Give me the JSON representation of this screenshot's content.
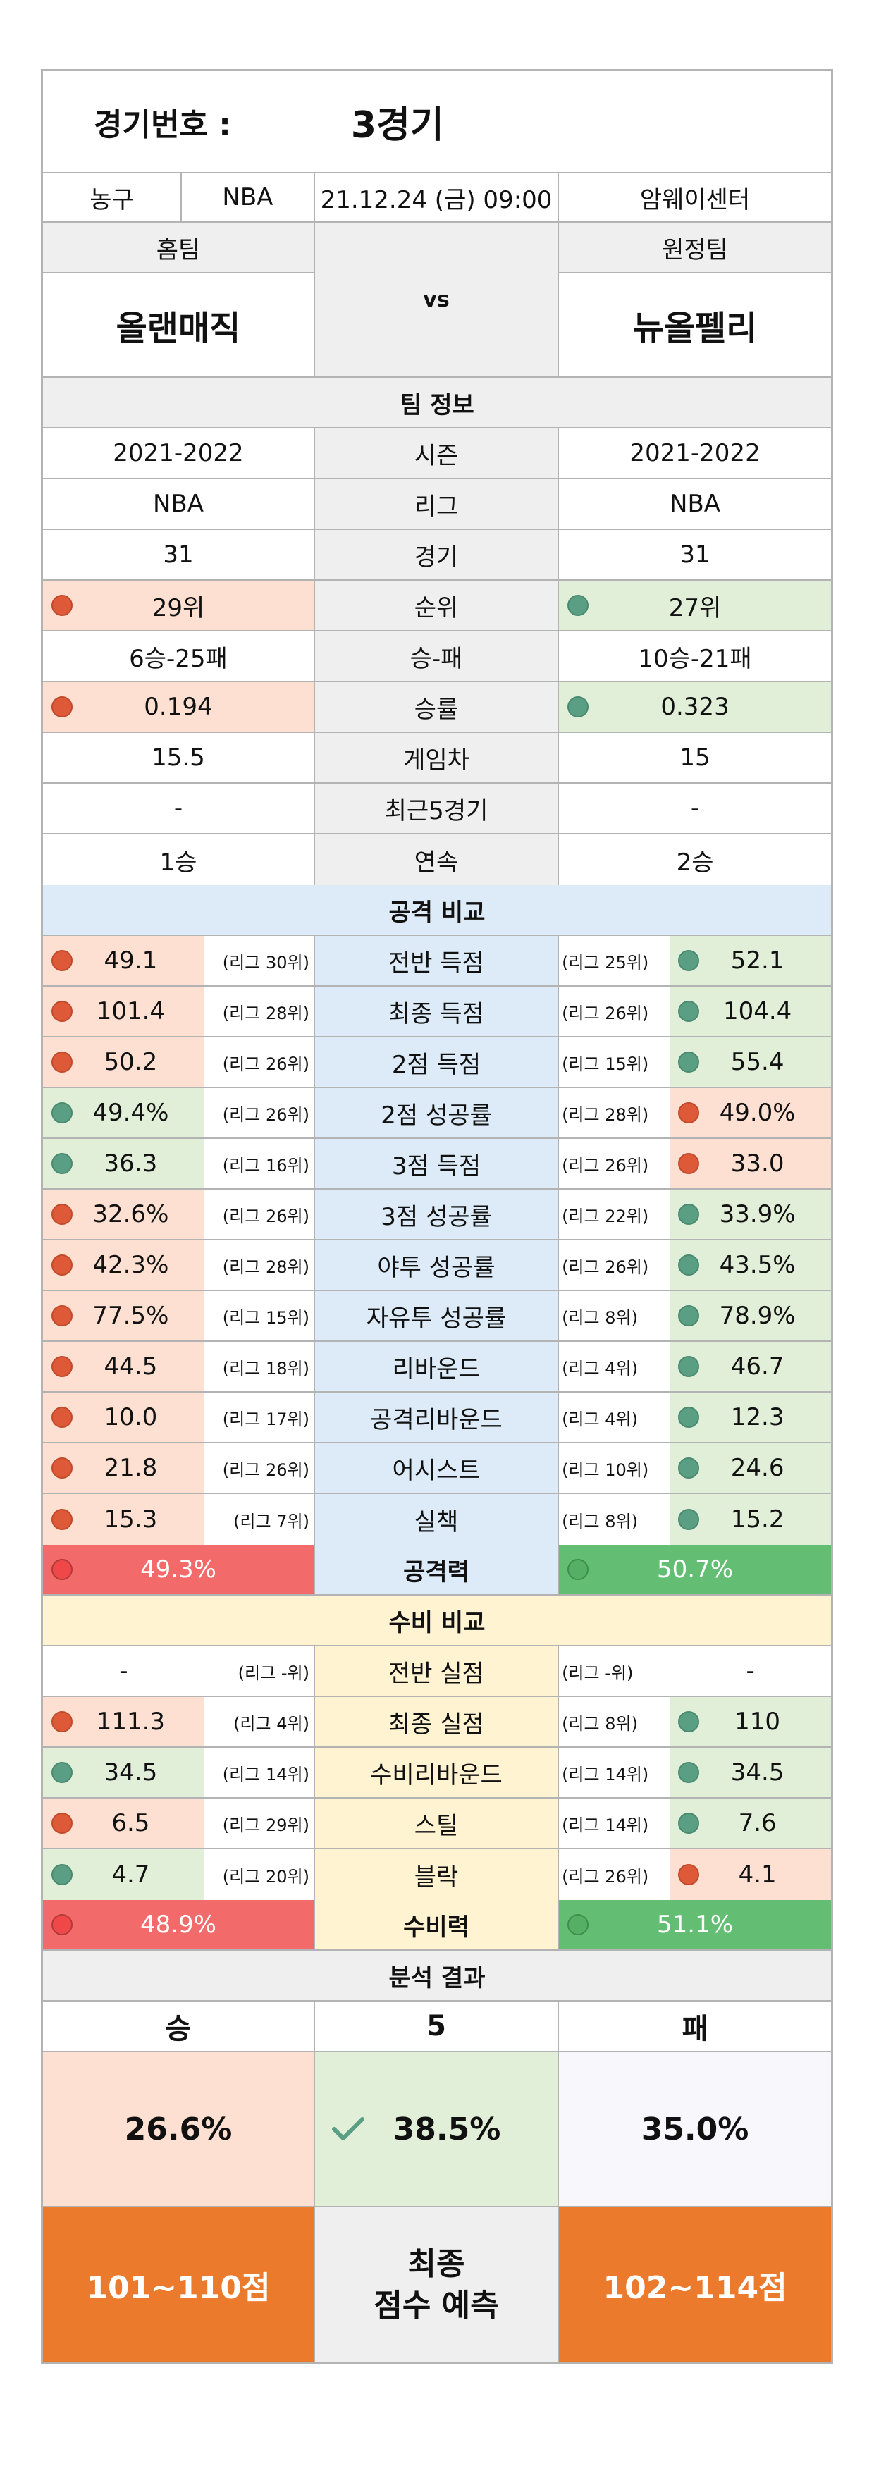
{
  "header": {
    "game_label": "경기번호 :",
    "game_value": "3경기"
  },
  "info": {
    "sport": "농구",
    "league": "NBA",
    "datetime": "21.12.24 (금) 09:00",
    "venue": "암웨이센터"
  },
  "teams": {
    "home_label": "홈팀",
    "away_label": "원정팀",
    "home_name": "올랜매직",
    "away_name": "뉴올펠리",
    "vs": "vs"
  },
  "team_info": {
    "title": "팀 정보",
    "rows": [
      {
        "label": "시즌",
        "home": "2021-2022",
        "away": "2021-2022",
        "marker": ""
      },
      {
        "label": "리그",
        "home": "NBA",
        "away": "NBA",
        "marker": ""
      },
      {
        "label": "경기",
        "home": "31",
        "away": "31",
        "marker": ""
      },
      {
        "label": "순위",
        "home": "29위",
        "away": "27위",
        "marker": "away"
      },
      {
        "label": "승-패",
        "home": "6승-25패",
        "away": "10승-21패",
        "marker": ""
      },
      {
        "label": "승률",
        "home": "0.194",
        "away": "0.323",
        "marker": "away"
      },
      {
        "label": "게임차",
        "home": "15.5",
        "away": "15",
        "marker": ""
      },
      {
        "label": "최근5경기",
        "home": "-",
        "away": "-",
        "marker": ""
      },
      {
        "label": "연속",
        "home": "1승",
        "away": "2승",
        "marker": ""
      }
    ]
  },
  "offense": {
    "title": "공격 비교",
    "rows": [
      {
        "label": "전반 득점",
        "home": "49.1",
        "home_rank": "(리그 30위)",
        "away_rank": "(리그 25위)",
        "away": "52.1",
        "better": "away"
      },
      {
        "label": "최종 득점",
        "home": "101.4",
        "home_rank": "(리그 28위)",
        "away_rank": "(리그 26위)",
        "away": "104.4",
        "better": "away"
      },
      {
        "label": "2점 득점",
        "home": "50.2",
        "home_rank": "(리그 26위)",
        "away_rank": "(리그 15위)",
        "away": "55.4",
        "better": "away"
      },
      {
        "label": "2점 성공률",
        "home": "49.4%",
        "home_rank": "(리그 26위)",
        "away_rank": "(리그 28위)",
        "away": "49.0%",
        "better": "home"
      },
      {
        "label": "3점 득점",
        "home": "36.3",
        "home_rank": "(리그 16위)",
        "away_rank": "(리그 26위)",
        "away": "33.0",
        "better": "home"
      },
      {
        "label": "3점 성공률",
        "home": "32.6%",
        "home_rank": "(리그 26위)",
        "away_rank": "(리그 22위)",
        "away": "33.9%",
        "better": "away"
      },
      {
        "label": "야투 성공률",
        "home": "42.3%",
        "home_rank": "(리그 28위)",
        "away_rank": "(리그 26위)",
        "away": "43.5%",
        "better": "away"
      },
      {
        "label": "자유투 성공률",
        "home": "77.5%",
        "home_rank": "(리그 15위)",
        "away_rank": "(리그 8위)",
        "away": "78.9%",
        "better": "away"
      },
      {
        "label": "리바운드",
        "home": "44.5",
        "home_rank": "(리그 18위)",
        "away_rank": "(리그 4위)",
        "away": "46.7",
        "better": "away"
      },
      {
        "label": "공격리바운드",
        "home": "10.0",
        "home_rank": "(리그 17위)",
        "away_rank": "(리그 4위)",
        "away": "12.3",
        "better": "away"
      },
      {
        "label": "어시스트",
        "home": "21.8",
        "home_rank": "(리그 26위)",
        "away_rank": "(리그 10위)",
        "away": "24.6",
        "better": "away"
      },
      {
        "label": "실책",
        "home": "15.3",
        "home_rank": "(리그 7위)",
        "away_rank": "(리그 8위)",
        "away": "15.2",
        "better": "away"
      }
    ],
    "summary": {
      "label": "공격력",
      "home": "49.3%",
      "away": "50.7%"
    }
  },
  "defense": {
    "title": "수비 비교",
    "rows": [
      {
        "label": "전반 실점",
        "home": "-",
        "home_rank": "(리그 -위)",
        "away_rank": "(리그 -위)",
        "away": "-",
        "better": ""
      },
      {
        "label": "최종 실점",
        "home": "111.3",
        "home_rank": "(리그 4위)",
        "away_rank": "(리그 8위)",
        "away": "110",
        "better": "away"
      },
      {
        "label": "수비리바운드",
        "home": "34.5",
        "home_rank": "(리그 14위)",
        "away_rank": "(리그 14위)",
        "away": "34.5",
        "better": "both"
      },
      {
        "label": "스틸",
        "home": "6.5",
        "home_rank": "(리그 29위)",
        "away_rank": "(리그 14위)",
        "away": "7.6",
        "better": "away"
      },
      {
        "label": "블락",
        "home": "4.7",
        "home_rank": "(리그 20위)",
        "away_rank": "(리그 26위)",
        "away": "4.1",
        "better": "home"
      }
    ],
    "summary": {
      "label": "수비력",
      "home": "48.9%",
      "away": "51.1%"
    }
  },
  "analysis": {
    "title": "분석 결과",
    "win_label": "승",
    "draw_label": "5",
    "lose_label": "패",
    "win_pct": "26.6%",
    "draw_pct": "38.5%",
    "lose_pct": "35.0%",
    "home_score": "101~110점",
    "away_score": "102~114점",
    "predict_line1": "최종",
    "predict_line2": "점수 예측"
  },
  "colors": {
    "dot_red": "#de5937",
    "dot_green": "#5a9e84",
    "highlight_pink": "#fde0d1",
    "highlight_green": "#e1efd8",
    "offense_bg": "#dcebf7",
    "defense_bg": "#fff3d1",
    "score_orange": "#ec7a2d"
  }
}
